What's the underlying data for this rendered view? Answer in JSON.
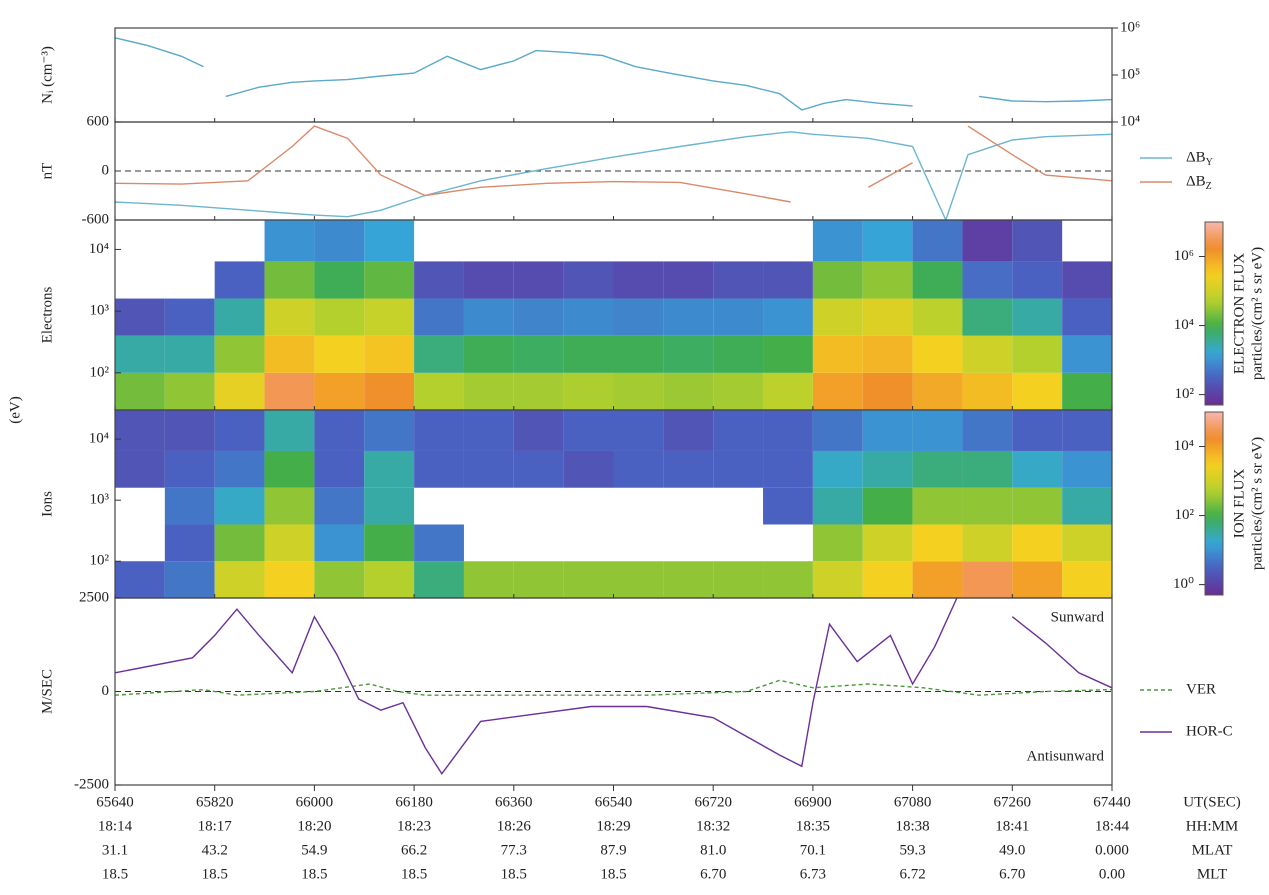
{
  "chart_data": [
    {
      "type": "line",
      "ylabel": "Nᵢ (cm⁻³)",
      "log": true,
      "yaxis_side": "right",
      "ylim": [
        10000,
        1000000
      ],
      "yticks": [
        {
          "value": 10000,
          "label": "10⁴"
        },
        {
          "value": 100000,
          "label": "10⁵"
        },
        {
          "value": 1000000,
          "label": "10⁶"
        }
      ],
      "x": [
        65640,
        65700,
        65760,
        65800,
        65820,
        65840,
        65900,
        65960,
        66000,
        66060,
        66120,
        66180,
        66240,
        66300,
        66360,
        66400,
        66460,
        66520,
        66580,
        66640,
        66720,
        66780,
        66840,
        66880,
        66920,
        66960,
        67020,
        67080,
        67140,
        67200,
        67260,
        67320,
        67380,
        67440
      ],
      "series": [
        {
          "color": "#5aa9c9",
          "values": [
            620000,
            420000,
            250000,
            150000,
            null,
            35000,
            55000,
            70000,
            75000,
            80000,
            95000,
            110000,
            250000,
            130000,
            200000,
            330000,
            300000,
            260000,
            150000,
            110000,
            75000,
            60000,
            40000,
            18000,
            25000,
            30000,
            25000,
            22000,
            null,
            35000,
            28000,
            27000,
            28000,
            30000
          ]
        }
      ]
    },
    {
      "type": "line",
      "ylabel": "nT",
      "zero_line": true,
      "ylim": [
        -600,
        600
      ],
      "yticks": [
        -600,
        0,
        600
      ],
      "x": [
        65640,
        65760,
        65880,
        65960,
        66000,
        66060,
        66120,
        66200,
        66300,
        66420,
        66540,
        66660,
        66780,
        66860,
        66900,
        67000,
        67080,
        67140,
        67180,
        67260,
        67320,
        67440
      ],
      "series": [
        {
          "name": "ΔB_Y",
          "color": "#6bb5d0",
          "values": [
            -380,
            -420,
            -480,
            -520,
            -540,
            -560,
            -480,
            -300,
            -120,
            30,
            170,
            300,
            420,
            480,
            450,
            400,
            300,
            -600,
            200,
            380,
            420,
            450
          ]
        },
        {
          "name": "ΔB_Z",
          "color": "#d98a6a",
          "values": [
            -150,
            -160,
            -120,
            300,
            550,
            400,
            -50,
            -300,
            -200,
            -150,
            -130,
            -140,
            -280,
            -380,
            null,
            -200,
            100,
            null,
            550,
            200,
            -50,
            -120
          ]
        }
      ]
    },
    {
      "type": "spectrogram",
      "ylabel": "Electrons",
      "log": true,
      "ylim": [
        25,
        30000
      ],
      "yticks": [
        {
          "value": 100,
          "label": "10²"
        },
        {
          "value": 1000,
          "label": "10³"
        },
        {
          "value": 10000,
          "label": "10⁴"
        }
      ],
      "time_bins": [
        65640,
        65730,
        65820,
        65910,
        66000,
        66090,
        66180,
        66270,
        66360,
        66450,
        66540,
        66630,
        66720,
        66810,
        66900,
        66990,
        67080,
        67170,
        67260,
        67350,
        67440
      ],
      "energy_bins": [
        25,
        100,
        400,
        1600,
        6400,
        30000
      ],
      "z": [
        [
          20000,
          3000,
          200,
          null,
          null
        ],
        [
          30000,
          3000,
          300,
          null,
          null
        ],
        [
          200000,
          30000,
          3000,
          300,
          null
        ],
        [
          3000000,
          500000,
          100000,
          20000,
          1000
        ],
        [
          1000000,
          300000,
          50000,
          8000,
          800
        ],
        [
          1500000,
          400000,
          80000,
          15000,
          1500
        ],
        [
          50000,
          5000,
          500,
          200,
          null
        ],
        [
          40000,
          8000,
          800,
          150,
          null
        ],
        [
          40000,
          7000,
          700,
          150,
          null
        ],
        [
          45000,
          8000,
          800,
          200,
          null
        ],
        [
          40000,
          8000,
          700,
          150,
          null
        ],
        [
          35000,
          7000,
          800,
          150,
          null
        ],
        [
          40000,
          8000,
          800,
          200,
          null
        ],
        [
          60000,
          10000,
          1000,
          200,
          null
        ],
        [
          1000000,
          500000,
          100000,
          20000,
          1000
        ],
        [
          1500000,
          600000,
          150000,
          30000,
          1500
        ],
        [
          800000,
          300000,
          60000,
          8000,
          500
        ],
        [
          500000,
          100000,
          5000,
          400,
          100
        ],
        [
          300000,
          50000,
          3000,
          300,
          200
        ],
        [
          10000,
          1000,
          300,
          150,
          null
        ]
      ],
      "colorbar": {
        "label": "ELECTRON FLUX",
        "units": "particles/(cm² s sr eV)",
        "clim": [
          50,
          10000000
        ],
        "ticks": [
          {
            "value": 100,
            "label": "10²"
          },
          {
            "value": 10000,
            "label": "10⁴"
          },
          {
            "value": 1000000,
            "label": "10⁶"
          }
        ]
      }
    },
    {
      "type": "spectrogram",
      "ylabel": "Ions",
      "log": true,
      "ylim": [
        25,
        30000
      ],
      "yticks": [
        {
          "value": 100,
          "label": "10²"
        },
        {
          "value": 1000,
          "label": "10³"
        },
        {
          "value": 10000,
          "label": "10⁴"
        }
      ],
      "time_bins": [
        65640,
        65730,
        65820,
        65910,
        66000,
        66090,
        66180,
        66270,
        66360,
        66450,
        66540,
        66630,
        66720,
        66810,
        66900,
        66990,
        67080,
        67170,
        67260,
        67350,
        67440
      ],
      "energy_bins": [
        25,
        100,
        400,
        1600,
        6400,
        30000
      ],
      "z": [
        [
          3,
          null,
          null,
          2,
          2
        ],
        [
          5,
          3,
          5,
          3,
          2
        ],
        [
          1000,
          200,
          20,
          5,
          3
        ],
        [
          3000,
          1000,
          300,
          100,
          30
        ],
        [
          300,
          10,
          5,
          3,
          3
        ],
        [
          500,
          100,
          30,
          30,
          5
        ],
        [
          50,
          5,
          null,
          3,
          3
        ],
        [
          300,
          null,
          null,
          3,
          3
        ],
        [
          300,
          null,
          null,
          3,
          2
        ],
        [
          300,
          null,
          null,
          2,
          3
        ],
        [
          300,
          null,
          null,
          3,
          3
        ],
        [
          300,
          null,
          null,
          3,
          2
        ],
        [
          300,
          null,
          null,
          3,
          3
        ],
        [
          300,
          null,
          3,
          3,
          3
        ],
        [
          1000,
          300,
          30,
          20,
          5
        ],
        [
          3000,
          1000,
          100,
          30,
          10
        ],
        [
          10000,
          3000,
          300,
          50,
          10
        ],
        [
          30000,
          1000,
          300,
          50,
          5
        ],
        [
          10000,
          3000,
          300,
          20,
          3
        ],
        [
          3000,
          1000,
          30,
          10,
          3
        ]
      ],
      "colorbar": {
        "label": "ION FLUX",
        "units": "particles/(cm² s sr eV)",
        "clim": [
          0.5,
          100000
        ],
        "ticks": [
          {
            "value": 1,
            "label": "10⁰"
          },
          {
            "value": 100,
            "label": "10²"
          },
          {
            "value": 10000,
            "label": "10⁴"
          }
        ]
      }
    },
    {
      "type": "line",
      "ylabel": "M/SEC",
      "zero_line": true,
      "ylim": [
        -2500,
        2500
      ],
      "yticks": [
        -2500,
        0,
        2500
      ],
      "annotations": [
        "Sunward",
        "Antisunward"
      ],
      "series": [
        {
          "name": "VER",
          "color": "#4a9a3a",
          "dash": true,
          "x": [
            65640,
            65800,
            65860,
            66000,
            66100,
            66150,
            66200,
            66400,
            66600,
            66780,
            66840,
            66900,
            67000,
            67100,
            67200,
            67260,
            67320,
            67440
          ],
          "values": [
            -100,
            50,
            -100,
            0,
            200,
            0,
            -100,
            -100,
            -100,
            0,
            300,
            100,
            200,
            100,
            -100,
            -50,
            0,
            50
          ]
        },
        {
          "name": "HOR-C",
          "color": "#6a2f9a",
          "x": [
            65640,
            65780,
            65820,
            65860,
            65900,
            65960,
            66000,
            66040,
            66080,
            66120,
            66160,
            66200,
            66230,
            66300,
            66400,
            66500,
            66600,
            66720,
            66780,
            66840,
            66880,
            66900,
            66930,
            66980,
            67040,
            67080,
            67120,
            67160,
            67200,
            67260,
            67320,
            67380,
            67440
          ],
          "values": [
            500,
            900,
            1500,
            2200,
            1500,
            500,
            2000,
            1000,
            -200,
            -500,
            -300,
            -1500,
            -2200,
            -800,
            -600,
            -400,
            -400,
            -700,
            -1200,
            -1700,
            -2000,
            -300,
            1800,
            800,
            1500,
            200,
            1200,
            2500,
            null,
            2000,
            1300,
            500,
            100
          ]
        }
      ]
    }
  ],
  "energy_label": "(eV)",
  "x_axis": {
    "label": "UT(SEC)",
    "xlim": [
      65640,
      67440
    ],
    "xticks": [
      65640,
      65820,
      66000,
      66180,
      66360,
      66540,
      66720,
      66900,
      67080,
      67260,
      67440
    ],
    "rows": [
      {
        "label": "HH:MM",
        "labels": [
          "18:14",
          "18:17",
          "18:20",
          "18:23",
          "18:26",
          "18:29",
          "18:32",
          "18:35",
          "18:38",
          "18:41",
          "18:44"
        ]
      },
      {
        "label": "MLAT",
        "labels": [
          "31.1",
          "43.2",
          "54.9",
          "66.2",
          "77.3",
          "87.9",
          "81.0",
          "70.1",
          "59.3",
          "49.0",
          "0.000"
        ]
      },
      {
        "label": "MLT",
        "labels": [
          "18.5",
          "18.5",
          "18.5",
          "18.5",
          "18.5",
          "18.5",
          "6.70",
          "6.73",
          "6.72",
          "6.70",
          "0.00"
        ]
      }
    ]
  }
}
